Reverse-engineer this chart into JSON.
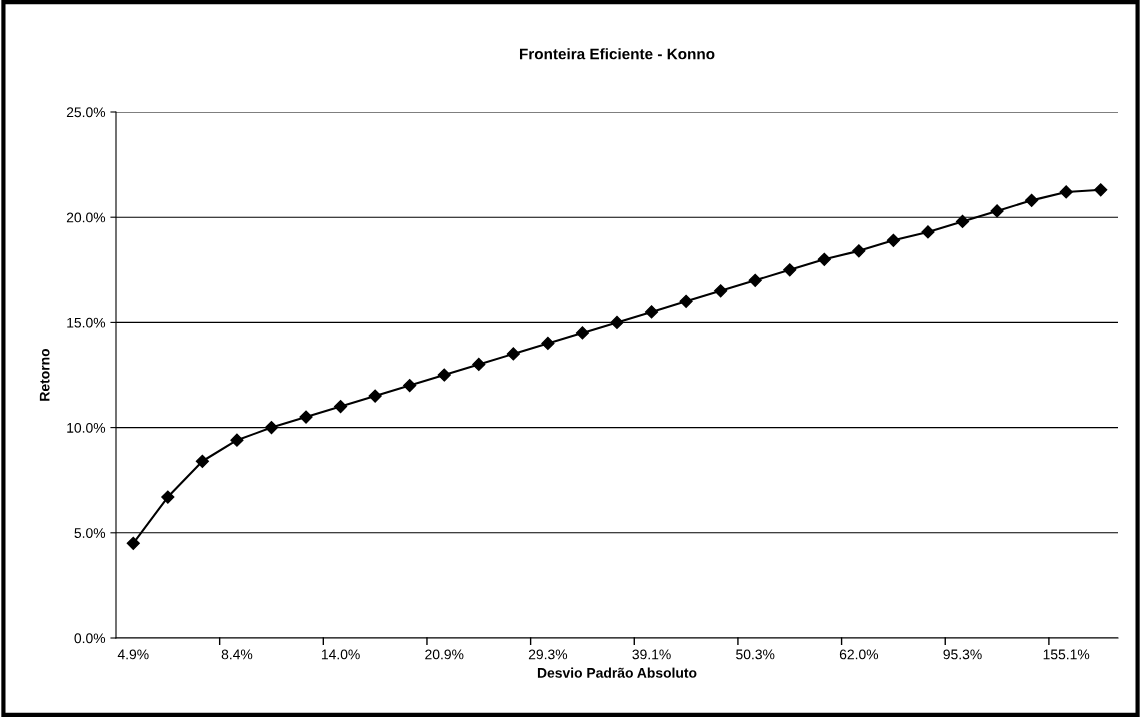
{
  "chart_data": {
    "type": "line",
    "title": "Fronteira Eficiente - Konno",
    "xlabel": "Desvio Padrão Absoluto",
    "ylabel": "Retorno",
    "categories": [
      "4.9%",
      null,
      null,
      "8.4%",
      null,
      null,
      "14.0%",
      null,
      null,
      "20.9%",
      null,
      null,
      "29.3%",
      null,
      null,
      "39.1%",
      null,
      null,
      "50.3%",
      null,
      null,
      "62.0%",
      null,
      null,
      "95.3%",
      null,
      null,
      "155.1%",
      null
    ],
    "series": [
      {
        "color": "#000000",
        "values": [
          4.5,
          6.7,
          8.4,
          9.4,
          10.0,
          10.5,
          11.0,
          11.5,
          12.0,
          12.5,
          13.0,
          13.5,
          14.0,
          14.5,
          15.0,
          15.5,
          16.0,
          16.5,
          17.0,
          17.5,
          18.0,
          18.4,
          18.9,
          19.3,
          19.8,
          20.3,
          20.8,
          21.2,
          21.3
        ]
      }
    ],
    "ylim": [
      0,
      25
    ],
    "yticks": [
      {
        "value": 0,
        "label": "0.0%"
      },
      {
        "value": 5,
        "label": "5.0%"
      },
      {
        "value": 10,
        "label": "10.0%"
      },
      {
        "value": 15,
        "label": "15.0%"
      },
      {
        "value": 20,
        "label": "20.0%"
      },
      {
        "value": 25,
        "label": "25.0%"
      }
    ],
    "grid": "y",
    "marker": "diamond",
    "line_style": "solid"
  }
}
